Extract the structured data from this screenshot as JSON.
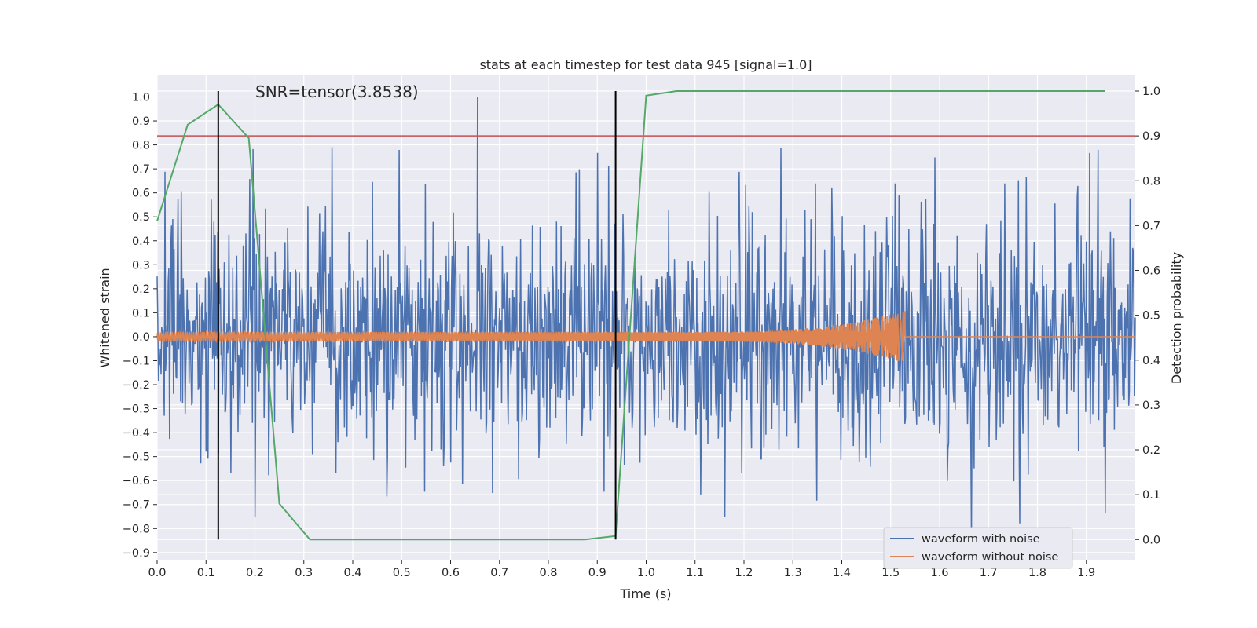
{
  "chart_data": {
    "type": "line",
    "title": "stats at each timestep for test data 945 [signal=1.0]",
    "annotation": "SNR=tensor(3.8538)",
    "xlabel": "Time (s)",
    "ylabel_left": "Whitened strain",
    "ylabel_right": "Detection probability",
    "xlim": [
      0.0,
      2.0
    ],
    "ylim_left": [
      -0.93,
      1.09
    ],
    "ylim_right": [
      -0.045,
      1.035
    ],
    "x_ticks": [
      "0.0",
      "0.1",
      "0.2",
      "0.3",
      "0.4",
      "0.5",
      "0.6",
      "0.7",
      "0.8",
      "0.9",
      "1.0",
      "1.1",
      "1.2",
      "1.3",
      "1.4",
      "1.5",
      "1.6",
      "1.7",
      "1.8",
      "1.9"
    ],
    "y_left_ticks": [
      "1.0",
      "0.9",
      "0.8",
      "0.7",
      "0.6",
      "0.5",
      "0.4",
      "0.3",
      "0.2",
      "0.1",
      "0.0",
      "−0.1",
      "−0.2",
      "−0.3",
      "−0.4",
      "−0.5",
      "−0.6",
      "−0.7",
      "−0.8",
      "−0.9"
    ],
    "y_right_ticks": [
      "1.0",
      "0.9",
      "0.8",
      "0.7",
      "0.6",
      "0.5",
      "0.4",
      "0.3",
      "0.2",
      "0.1",
      "0.0"
    ],
    "grid": true,
    "legend_position": "bottom-right",
    "series": [
      {
        "name": "waveform with noise",
        "color": "#4c72b0",
        "axis": "left",
        "noise_std": 0.25,
        "spike_max": 1.0,
        "spike_min": -0.83
      },
      {
        "name": "waveform without noise",
        "color": "#dd8452",
        "axis": "left",
        "chirp_start_amplitude": 0.02,
        "chirp_peak_amplitude": 0.11,
        "merger_time": 1.53
      },
      {
        "name": "detection probability",
        "color": "#55a868",
        "axis": "right",
        "x": [
          0.0,
          0.0625,
          0.125,
          0.1875,
          0.25,
          0.3125,
          0.875,
          0.9375,
          1.0,
          1.0625,
          1.125,
          1.1875,
          1.25,
          1.3125,
          1.375,
          1.4375,
          1.5,
          1.5625,
          1.625,
          1.6875,
          1.75,
          1.8125,
          1.875,
          1.9375
        ],
        "y": [
          0.71,
          0.925,
          0.97,
          0.895,
          0.08,
          0.0,
          0.0,
          0.008,
          0.99,
          1.0,
          1.0,
          1.0,
          1.0,
          1.0,
          1.0,
          1.0,
          1.0,
          1.0,
          1.0,
          1.0,
          1.0,
          1.0,
          1.0,
          1.0
        ]
      }
    ],
    "threshold_line": {
      "axis": "right",
      "value": 0.9,
      "color": "#c44e52"
    },
    "event_markers": [
      {
        "x": 0.125,
        "y_from": 0.0,
        "y_to": 1.0,
        "color": "#000000"
      },
      {
        "x": 0.9375,
        "y_from": 0.0,
        "y_to": 1.0,
        "color": "#000000"
      }
    ]
  },
  "legend": {
    "noise_label": "waveform with noise",
    "clean_label": "waveform without noise"
  }
}
